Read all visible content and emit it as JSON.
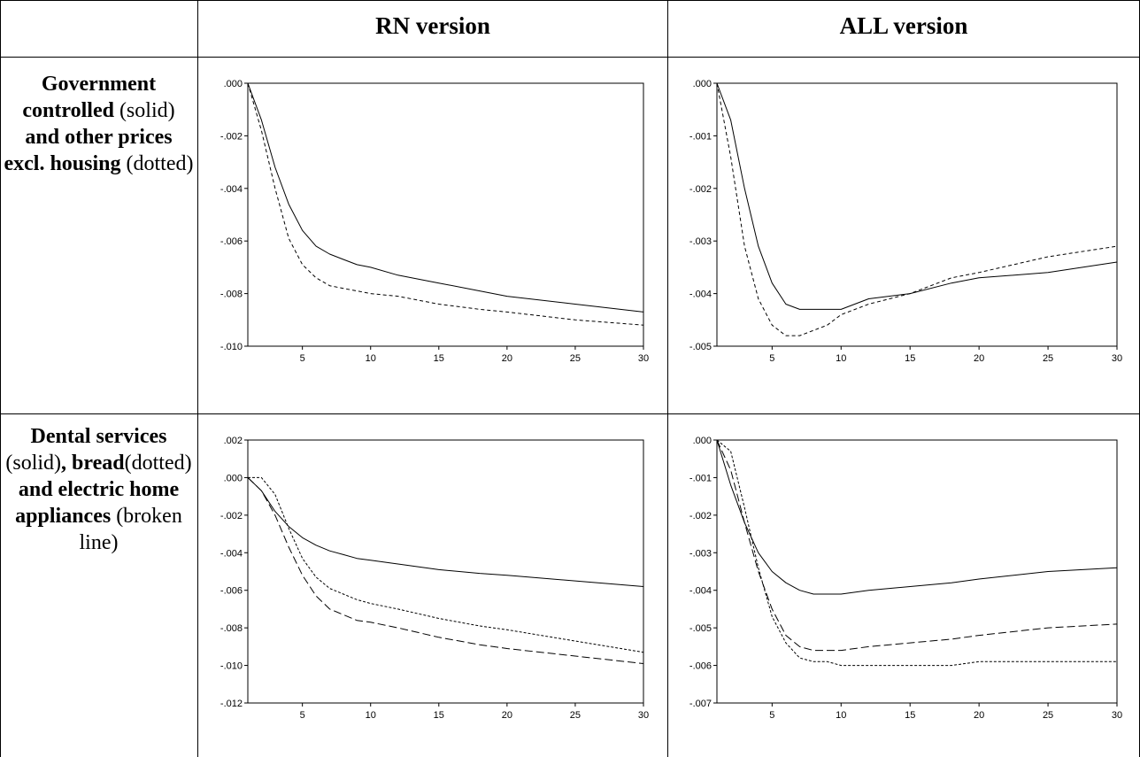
{
  "table": {
    "col_headers": [
      "RN version",
      "ALL version"
    ],
    "rows": [
      {
        "label_parts": [
          {
            "text": "Government controlled",
            "bold": true
          },
          {
            "text": " (solid) ",
            "bold": false
          },
          {
            "text": "and other prices excl. housing",
            "bold": true
          },
          {
            "text": " (dotted)",
            "bold": false
          }
        ]
      },
      {
        "label_parts": [
          {
            "text": "Dental services",
            "bold": true
          },
          {
            "text": " (solid)",
            "bold": false
          },
          {
            "text": ", bread",
            "bold": true
          },
          {
            "text": "(dotted) ",
            "bold": false
          },
          {
            "text": "and electric home appliances",
            "bold": true
          },
          {
            "text": " (broken line)",
            "bold": false
          }
        ]
      }
    ]
  },
  "chart_data": [
    {
      "type": "line",
      "panel": "row1-RN",
      "xlim": [
        1,
        30
      ],
      "ylim": [
        -0.01,
        0.0
      ],
      "x_ticks": [
        5,
        10,
        15,
        20,
        25,
        30
      ],
      "y_ticks": [
        0.0,
        -0.002,
        -0.004,
        -0.006,
        -0.008,
        -0.01
      ],
      "y_tick_labels": [
        ".000",
        "-.002",
        "-.004",
        "-.006",
        "-.008",
        "-.010"
      ],
      "series": [
        {
          "style": "solid",
          "x": [
            1,
            2,
            3,
            4,
            5,
            6,
            7,
            8,
            9,
            10,
            12,
            15,
            18,
            20,
            25,
            30
          ],
          "values": [
            0.0,
            -0.0014,
            -0.0032,
            -0.0046,
            -0.0056,
            -0.0062,
            -0.0065,
            -0.0067,
            -0.0069,
            -0.007,
            -0.0073,
            -0.0076,
            -0.0079,
            -0.0081,
            -0.0084,
            -0.0087
          ]
        },
        {
          "style": "dashed",
          "x": [
            1,
            2,
            3,
            4,
            5,
            6,
            7,
            8,
            9,
            10,
            12,
            15,
            18,
            20,
            25,
            30
          ],
          "values": [
            0.0,
            -0.0018,
            -0.004,
            -0.0059,
            -0.0069,
            -0.0074,
            -0.0077,
            -0.0078,
            -0.0079,
            -0.008,
            -0.0081,
            -0.0084,
            -0.0086,
            -0.0087,
            -0.009,
            -0.0092
          ]
        }
      ]
    },
    {
      "type": "line",
      "panel": "row1-ALL",
      "xlim": [
        1,
        30
      ],
      "ylim": [
        -0.005,
        0.0
      ],
      "x_ticks": [
        5,
        10,
        15,
        20,
        25,
        30
      ],
      "y_ticks": [
        0.0,
        -0.001,
        -0.002,
        -0.003,
        -0.004,
        -0.005
      ],
      "y_tick_labels": [
        ".000",
        "-.001",
        "-.002",
        "-.003",
        "-.004",
        "-.005"
      ],
      "series": [
        {
          "style": "solid",
          "x": [
            1,
            2,
            3,
            4,
            5,
            6,
            7,
            8,
            9,
            10,
            12,
            15,
            18,
            20,
            25,
            30
          ],
          "values": [
            0.0,
            -0.0007,
            -0.002,
            -0.0031,
            -0.0038,
            -0.0042,
            -0.0043,
            -0.0043,
            -0.0043,
            -0.0043,
            -0.0041,
            -0.004,
            -0.0038,
            -0.0037,
            -0.0036,
            -0.0034
          ]
        },
        {
          "style": "dashed",
          "x": [
            1,
            2,
            3,
            4,
            5,
            6,
            7,
            8,
            9,
            10,
            12,
            15,
            18,
            20,
            25,
            30
          ],
          "values": [
            0.0,
            -0.0014,
            -0.0031,
            -0.0041,
            -0.0046,
            -0.0048,
            -0.0048,
            -0.0047,
            -0.0046,
            -0.0044,
            -0.0042,
            -0.004,
            -0.0037,
            -0.0036,
            -0.0033,
            -0.0031
          ]
        }
      ]
    },
    {
      "type": "line",
      "panel": "row2-RN",
      "xlim": [
        1,
        30
      ],
      "ylim": [
        -0.012,
        0.002
      ],
      "x_ticks": [
        5,
        10,
        15,
        20,
        25,
        30
      ],
      "y_ticks": [
        0.002,
        0.0,
        -0.002,
        -0.004,
        -0.006,
        -0.008,
        -0.01,
        -0.012
      ],
      "y_tick_labels": [
        ".002",
        ".000",
        "-.002",
        "-.004",
        "-.006",
        "-.008",
        "-.010",
        "-.012"
      ],
      "series": [
        {
          "style": "solid",
          "x": [
            1,
            2,
            3,
            4,
            5,
            6,
            7,
            8,
            9,
            10,
            12,
            15,
            18,
            20,
            25,
            30
          ],
          "values": [
            0.0,
            -0.0007,
            -0.0018,
            -0.0026,
            -0.0032,
            -0.0036,
            -0.0039,
            -0.0041,
            -0.0043,
            -0.0044,
            -0.0046,
            -0.0049,
            -0.0051,
            -0.0052,
            -0.0055,
            -0.0058
          ]
        },
        {
          "style": "dotted",
          "x": [
            1,
            2,
            3,
            4,
            5,
            6,
            7,
            8,
            9,
            10,
            12,
            15,
            18,
            20,
            25,
            30
          ],
          "values": [
            0.0,
            0.0,
            -0.0009,
            -0.0027,
            -0.0043,
            -0.0053,
            -0.0059,
            -0.0062,
            -0.0065,
            -0.0067,
            -0.007,
            -0.0075,
            -0.0079,
            -0.0081,
            -0.0087,
            -0.0093
          ]
        },
        {
          "style": "broken",
          "x": [
            1,
            2,
            3,
            4,
            5,
            6,
            7,
            8,
            9,
            10,
            12,
            15,
            18,
            20,
            25,
            30
          ],
          "values": [
            0.0,
            -0.0007,
            -0.002,
            -0.0037,
            -0.0052,
            -0.0063,
            -0.007,
            -0.0073,
            -0.0076,
            -0.0077,
            -0.008,
            -0.0085,
            -0.0089,
            -0.0091,
            -0.0095,
            -0.0099
          ]
        }
      ]
    },
    {
      "type": "line",
      "panel": "row2-ALL",
      "xlim": [
        1,
        30
      ],
      "ylim": [
        -0.007,
        0.0
      ],
      "x_ticks": [
        5,
        10,
        15,
        20,
        25,
        30
      ],
      "y_ticks": [
        0.0,
        -0.001,
        -0.002,
        -0.003,
        -0.004,
        -0.005,
        -0.006,
        -0.007
      ],
      "y_tick_labels": [
        ".000",
        "-.001",
        "-.002",
        "-.003",
        "-.004",
        "-.005",
        "-.006",
        "-.007"
      ],
      "series": [
        {
          "style": "solid",
          "x": [
            1,
            2,
            3,
            4,
            5,
            6,
            7,
            8,
            9,
            10,
            12,
            15,
            18,
            20,
            25,
            30
          ],
          "values": [
            0.0,
            -0.0012,
            -0.0022,
            -0.003,
            -0.0035,
            -0.0038,
            -0.004,
            -0.0041,
            -0.0041,
            -0.0041,
            -0.004,
            -0.0039,
            -0.0038,
            -0.0037,
            -0.0035,
            -0.0034
          ]
        },
        {
          "style": "dotted",
          "x": [
            1,
            2,
            3,
            4,
            5,
            6,
            7,
            8,
            9,
            10,
            12,
            15,
            18,
            20,
            25,
            30
          ],
          "values": [
            0.0,
            -0.0003,
            -0.0018,
            -0.0034,
            -0.0047,
            -0.0054,
            -0.0058,
            -0.0059,
            -0.0059,
            -0.006,
            -0.006,
            -0.006,
            -0.006,
            -0.0059,
            -0.0059,
            -0.0059
          ]
        },
        {
          "style": "broken",
          "x": [
            1,
            2,
            3,
            4,
            5,
            6,
            7,
            8,
            9,
            10,
            12,
            15,
            18,
            20,
            25,
            30
          ],
          "values": [
            0.0,
            -0.0008,
            -0.0022,
            -0.0035,
            -0.0045,
            -0.0052,
            -0.0055,
            -0.0056,
            -0.0056,
            -0.0056,
            -0.0055,
            -0.0054,
            -0.0053,
            -0.0052,
            -0.005,
            -0.0049
          ]
        }
      ]
    }
  ]
}
